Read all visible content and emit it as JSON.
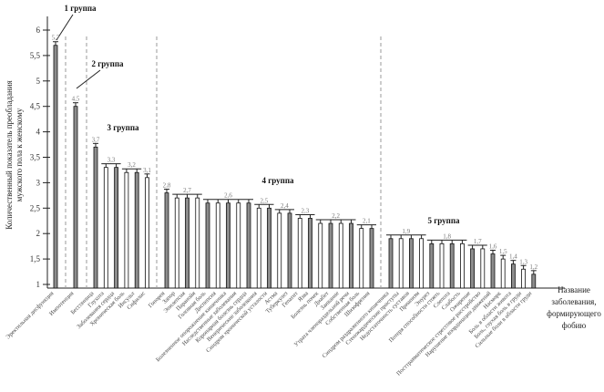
{
  "chart_data": {
    "type": "bar",
    "title": "",
    "ylabel_lines": [
      "Количественный показатель преобладания",
      "мужского пола к женскому"
    ],
    "xlabel_lines": [
      "Название",
      "заболевания,",
      "формирующего",
      "фобию"
    ],
    "ylim": [
      1,
      6
    ],
    "yticks": [
      "1",
      "1,5",
      "2",
      "2,5",
      "3",
      "3,5",
      "4",
      "4,5",
      "5",
      "5,5",
      "6"
    ],
    "grid": false,
    "error_bars": true,
    "colors": {
      "bar_fill": "#8c8c8c",
      "bar_stroke": "#111111",
      "divider": "#999999",
      "value_label": "#777777"
    },
    "groups": [
      {
        "label": "1 группа",
        "categories": [
          "Эректильная дисфункция"
        ],
        "values": [
          5.7
        ]
      },
      {
        "label": "2 группа",
        "categories": [
          "Импотенция"
        ],
        "values": [
          4.5
        ]
      },
      {
        "label": "3 группа",
        "categories": [
          "Бессонница",
          "Глухота",
          "Заболевания сердца",
          "Хроническая боль",
          "Инсульт",
          "Сифилис"
        ],
        "values": [
          3.7,
          3.3,
          3.3,
          3.2,
          3.2,
          3.1
        ]
      },
      {
        "label": "4 группа",
        "categories": [
          "Гонорея",
          "Запор",
          "Эпилепсия",
          "Паранойя",
          "Головная боль",
          "Диспепсия",
          "Болезненное опорожнение кишечника",
          "Наследственные заболевания",
          "Коронарная болезнь сердца",
          "Венерические заболевания",
          "Синдром хронической усталости",
          "Астма",
          "Туберкулез",
          "Гепатит",
          "Язва",
          "Болезнь почек",
          "Диабет",
          "Заикание",
          "Утрата членораздельной речи",
          "Собственная боль",
          "Шизофрения"
        ],
        "values": [
          2.8,
          2.7,
          2.7,
          2.7,
          2.6,
          2.6,
          2.6,
          2.6,
          2.6,
          2.5,
          2.5,
          2.4,
          2.4,
          2.3,
          2.3,
          2.2,
          2.2,
          2.2,
          2.2,
          2.1,
          2.1
        ]
      },
      {
        "label": "5 группа",
        "categories": [
          "Синдром раздраженного кишечника",
          "Стенокардические приступы",
          "Недостаточность суставов",
          "Приапизм",
          "Энурез",
          "Потеря способности стоять",
          "Слепота",
          "Слабость",
          "Ожирение",
          "Посттравматическое стрессовое расстройство",
          "Нарушение координации движений",
          "Насморк",
          "Боль в области живота",
          "Боль, глухая боль в груди",
          "Сильные боли в области груди"
        ],
        "values": [
          1.9,
          1.9,
          1.9,
          1.9,
          1.8,
          1.8,
          1.8,
          1.8,
          1.7,
          1.7,
          1.6,
          1.5,
          1.4,
          1.3,
          1.2
        ]
      }
    ],
    "value_labels": [
      "5,7",
      "4,5",
      "3,7",
      "3,3",
      "3,2",
      "3,1",
      "2,8",
      "2,7",
      "2,6",
      "2,5",
      "2,4",
      "2,3",
      "2,2",
      "2,1",
      "1,9",
      "1,8",
      "1,7",
      "1,6",
      "1,5",
      "1,4",
      "1,3",
      "1,2"
    ]
  }
}
